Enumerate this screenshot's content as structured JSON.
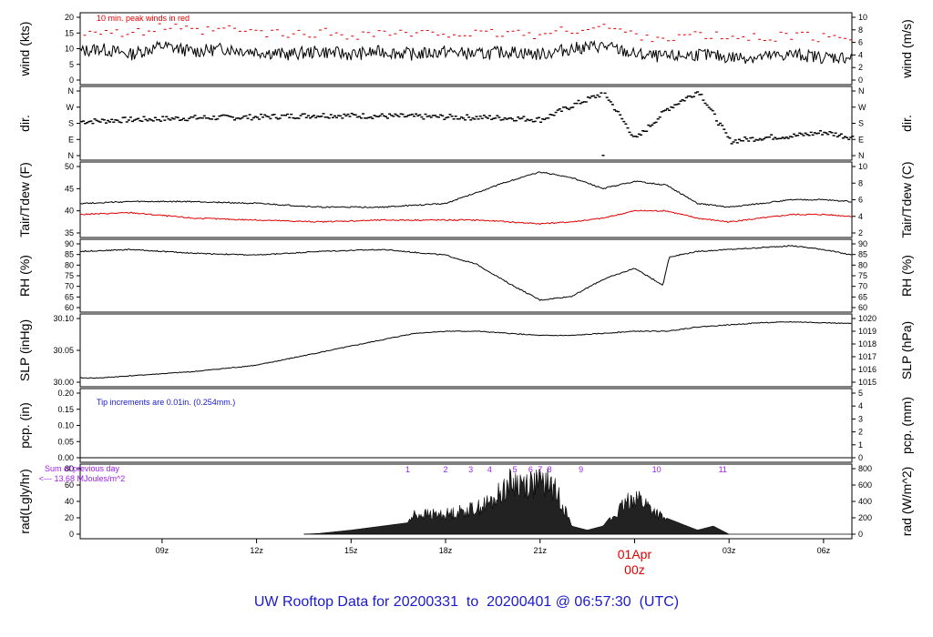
{
  "footer": "UW Rooftop Data for 20200331  to  20200401 @ 06:57:30  (UTC)",
  "colors": {
    "main": "#000000",
    "red": "#e00000",
    "blue": "#1a1acd",
    "purple": "#a020f0"
  },
  "chart_data": [
    {
      "type": "line",
      "panel": "wind",
      "ylabel_left": "wind (kts)",
      "ylabel_right": "wind (m/s)",
      "ylim": [
        0,
        22
      ],
      "yticks_left": [
        "0",
        "5",
        "10",
        "15",
        "20"
      ],
      "yticks_right": [
        "0",
        "2",
        "4",
        "6",
        "8",
        "10"
      ],
      "annotation": "10 min. peak winds in red",
      "series": [
        {
          "name": "",
          "color": "#000000",
          "x": [
            6.4,
            7,
            8,
            9,
            10,
            11,
            12,
            13,
            14,
            15,
            16,
            17,
            18,
            19,
            20,
            21,
            22,
            23,
            24,
            25,
            26,
            27,
            28,
            29,
            30,
            30.9
          ],
          "values": [
            10,
            11,
            9,
            12,
            10,
            11,
            10,
            9,
            10,
            9,
            10,
            9,
            10,
            9,
            10,
            9,
            11,
            12,
            9,
            8,
            9,
            8,
            8,
            9,
            8,
            8
          ]
        }
      ]
    },
    {
      "type": "scatter",
      "panel": "dir",
      "ylabel_left": "dir.",
      "ylabel_right": "dir.",
      "yticks_left": [
        "N",
        "E",
        "S",
        "W",
        "N"
      ],
      "yticks_right": [
        "N",
        "E",
        "S",
        "W",
        "N"
      ],
      "series": [
        {
          "name": "",
          "color": "#000000",
          "x": [
            6.4,
            8,
            10,
            12,
            14,
            16,
            18,
            20,
            21,
            22,
            23,
            24,
            25,
            26,
            27,
            28,
            29,
            30,
            30.9
          ],
          "values": [
            190,
            200,
            210,
            215,
            225,
            220,
            215,
            210,
            200,
            280,
            350,
            90,
            260,
            360,
            80,
            100,
            110,
            130,
            100
          ]
        }
      ]
    },
    {
      "type": "line",
      "panel": "temp",
      "ylabel_left": "Tair/Tdew (F)",
      "ylabel_right": "Tair/Tdew (C)",
      "ylim": [
        33,
        51
      ],
      "yticks_left": [
        "35",
        "40",
        "45",
        "50"
      ],
      "yticks_right": [
        "2",
        "4",
        "6",
        "8",
        "10"
      ],
      "series": [
        {
          "name": "",
          "color": "#000000",
          "x": [
            6.4,
            8,
            10,
            12,
            14,
            16,
            18,
            19,
            20,
            21,
            22,
            23,
            24,
            25,
            26,
            27,
            28,
            29,
            30,
            30.9
          ],
          "values": [
            41,
            41.5,
            41.5,
            41,
            40,
            40,
            41,
            44,
            47,
            49.5,
            48,
            45,
            47,
            46,
            41,
            40,
            41,
            42,
            42,
            41.5
          ]
        },
        {
          "name": "",
          "color": "#e00000",
          "x": [
            6.4,
            8,
            10,
            12,
            14,
            16,
            18,
            19,
            20,
            21,
            22,
            23,
            24,
            25,
            26,
            27,
            28,
            29,
            30,
            30.9
          ],
          "values": [
            38,
            38.5,
            37,
            36.5,
            36,
            36.5,
            36.5,
            36.5,
            36,
            35.5,
            36,
            37,
            39,
            39,
            37,
            36,
            37,
            38,
            38,
            37.5
          ]
        }
      ]
    },
    {
      "type": "line",
      "panel": "rh",
      "ylabel_left": "RH (%)",
      "ylabel_right": "RH (%)",
      "ylim": [
        57,
        91
      ],
      "yticks_left": [
        "60",
        "65",
        "70",
        "75",
        "80",
        "85",
        "90"
      ],
      "yticks_right": [
        "60",
        "65",
        "70",
        "75",
        "80",
        "85",
        "90"
      ],
      "series": [
        {
          "name": "",
          "color": "#000000",
          "x": [
            6.4,
            8,
            10,
            12,
            14,
            16,
            18,
            19,
            20,
            21,
            22,
            23,
            24,
            24.9,
            25.1,
            26,
            27,
            28,
            29,
            30,
            30.9
          ],
          "values": [
            87,
            88,
            86,
            85,
            87,
            88,
            85,
            80,
            70,
            61,
            63,
            72,
            78,
            69,
            84,
            87,
            88,
            89,
            90,
            88,
            85
          ]
        }
      ]
    },
    {
      "type": "line",
      "panel": "slp",
      "ylabel_left": "SLP (inHg)",
      "ylabel_right": "SLP (hPa)",
      "ylim": [
        29.97,
        30.12
      ],
      "yticks_left": [
        "30.00",
        "30.05",
        "30.10"
      ],
      "yticks_right": [
        "1015",
        "1016",
        "1017",
        "1018",
        "1019",
        "1020"
      ],
      "series": [
        {
          "name": "",
          "color": "#000000",
          "x": [
            6.4,
            7,
            8,
            9,
            10,
            12,
            14,
            16,
            17,
            18,
            19,
            20,
            21,
            22,
            23,
            24,
            25,
            26,
            27,
            28,
            29,
            30,
            30.9
          ],
          "values": [
            29.98,
            29.98,
            29.985,
            29.99,
            29.995,
            30.01,
            30.04,
            30.07,
            30.085,
            30.09,
            30.09,
            30.085,
            30.08,
            30.08,
            30.085,
            30.09,
            30.09,
            30.1,
            30.105,
            30.11,
            30.112,
            30.11,
            30.108
          ]
        }
      ]
    },
    {
      "type": "line",
      "panel": "pcp",
      "ylabel_left": "pcp. (in)",
      "ylabel_right": "pcp. (mm)",
      "ylim": [
        0,
        0.2
      ],
      "yticks_left": [
        "0.00",
        "0.05",
        "0.10",
        "0.15",
        "0.20"
      ],
      "yticks_right": [
        "0",
        "1",
        "2",
        "3",
        "4",
        "5"
      ],
      "annotation": "Tip increments are 0.01in. (0.254mm.)",
      "series": [
        {
          "name": "",
          "color": "#000000",
          "x": [
            6.4,
            30.9
          ],
          "values": [
            0,
            0
          ]
        }
      ]
    },
    {
      "type": "area",
      "panel": "rad",
      "ylabel_left": "rad(Lgly/hr)",
      "ylabel_right": "rad (W/m^2)",
      "ylim": [
        0,
        80
      ],
      "yticks_left": [
        "0",
        "20",
        "40",
        "60",
        "80"
      ],
      "yticks_right": [
        "0",
        "200",
        "400",
        "600",
        "800"
      ],
      "annotation_prev": [
        "Sum of previous day",
        "<--- 13.68 MJoules/m^2"
      ],
      "markers": [
        "1",
        "2",
        "3",
        "4",
        "5",
        "6",
        "7",
        "8",
        "9",
        "10",
        "11"
      ],
      "series": [
        {
          "name": "",
          "color": "#000000",
          "x": [
            13.5,
            14,
            15,
            16,
            16.8,
            17,
            18,
            19,
            19.5,
            20,
            20.5,
            21,
            21.3,
            21.7,
            22,
            22.5,
            23,
            24,
            25,
            26,
            26.5,
            27
          ],
          "values": [
            0,
            1,
            5,
            10,
            14,
            30,
            30,
            40,
            50,
            78,
            78,
            78,
            78,
            50,
            10,
            5,
            10,
            60,
            20,
            5,
            10,
            0
          ]
        }
      ]
    }
  ],
  "x_axis": {
    "ticks": [
      "09z",
      "12z",
      "15z",
      "18z",
      "21z",
      "03z",
      "06z"
    ],
    "date_label": "01Apr",
    "date_sub": "00z"
  }
}
